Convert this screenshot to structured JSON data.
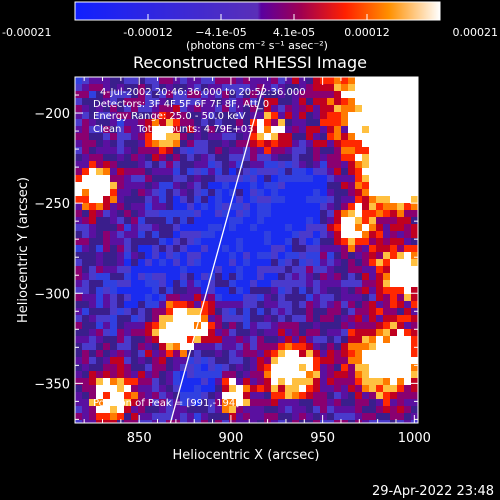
{
  "chart_data": {
    "type": "heatmap",
    "title": "Reconstructed RHESSI Image",
    "xlabel": "Heliocentric X (arcsec)",
    "ylabel": "Heliocentric Y (arcsec)",
    "xlim": [
      815,
      1002
    ],
    "ylim": [
      -372,
      -180
    ],
    "x_ticks": [
      "850",
      "900",
      "950",
      "1000"
    ],
    "y_ticks": [
      "-200",
      "-250",
      "-300",
      "-350"
    ],
    "colorbar": {
      "ticks": [
        "-0.00021",
        "-0.00012",
        "−4.1e-05",
        "4.1e-05",
        "0.00012",
        "0.00021"
      ],
      "range": [
        -0.00021,
        0.00021
      ],
      "unit_label": "(photons cm⁻² s⁻¹ asec⁻²)"
    },
    "annotations": [
      "4-Jul-2002 20:46:36.000 to 20:52:36.000",
      "Detectors: 3F 4F 5F 6F 7F 8F, Att_0",
      "Energy Range: 25.0 - 50.0 keV",
      "Clean     Total counts: 4.79E+03"
    ],
    "peak_text": "Position of Peak = [991,-194]",
    "limb": [
      {
        "x": 867,
        "y": -372
      },
      {
        "x": 918,
        "y": -184
      }
    ],
    "colors": {
      "limb": "#ffffff"
    }
  },
  "footer": {
    "timestamp": "29-Apr-2022 23:48"
  }
}
